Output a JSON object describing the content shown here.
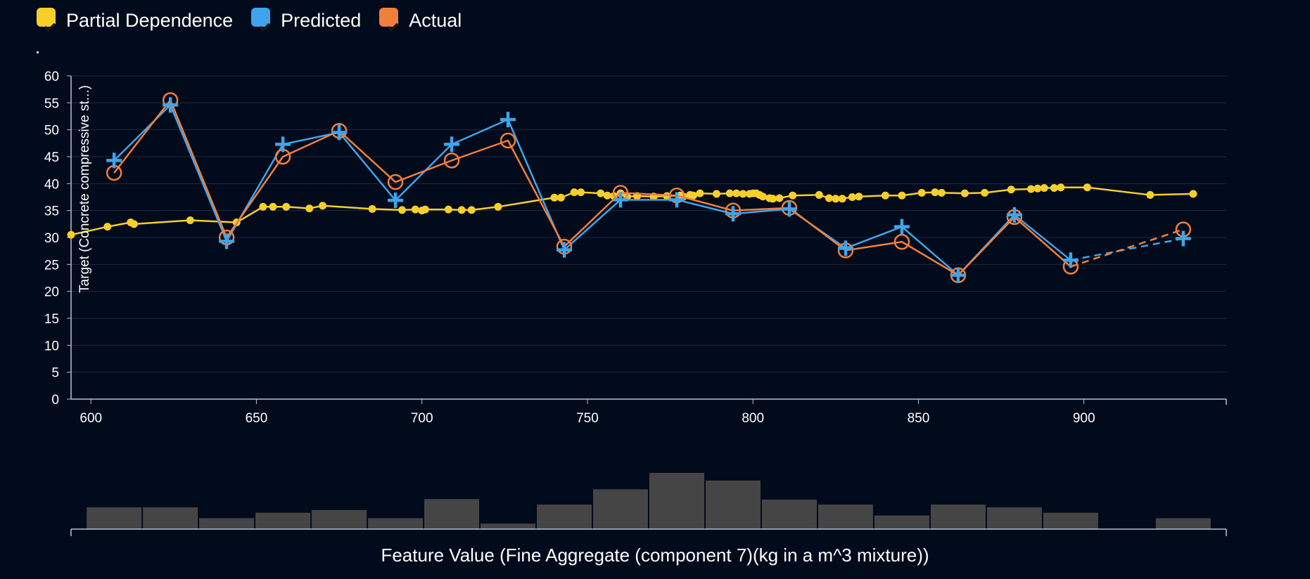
{
  "legend": {
    "items": [
      {
        "label": "Partial Dependence",
        "color": "#f7cf2b"
      },
      {
        "label": "Predicted",
        "color": "#3fa4ea"
      },
      {
        "label": "Actual",
        "color": "#f07f3c"
      }
    ]
  },
  "chart_data": {
    "type": "line",
    "ylabel": "Target (Concrete compressive st...)",
    "xlabel": "Feature Value (Fine Aggregate (component 7)(kg in a m^3 mixture))",
    "xlim": [
      594,
      943
    ],
    "ylim": [
      0,
      60
    ],
    "x_ticks": [
      600,
      650,
      700,
      750,
      800,
      850,
      900
    ],
    "y_ticks": [
      0,
      5,
      10,
      15,
      20,
      25,
      30,
      35,
      40,
      45,
      50,
      55,
      60
    ],
    "grid": true,
    "legend_position": "top-left",
    "series": [
      {
        "name": "Partial Dependence",
        "color": "#f7cf2b",
        "marker": "dot",
        "points": [
          [
            594,
            30.5
          ],
          [
            605,
            32.0
          ],
          [
            612,
            32.8
          ],
          [
            613,
            32.5
          ],
          [
            630,
            33.2
          ],
          [
            644,
            32.8
          ],
          [
            652,
            35.7
          ],
          [
            655,
            35.7
          ],
          [
            659,
            35.7
          ],
          [
            666,
            35.4
          ],
          [
            670,
            35.9
          ],
          [
            685,
            35.3
          ],
          [
            694,
            35.1
          ],
          [
            698,
            35.2
          ],
          [
            700,
            35.0
          ],
          [
            701,
            35.2
          ],
          [
            708,
            35.2
          ],
          [
            712,
            35.1
          ],
          [
            715,
            35.1
          ],
          [
            723,
            35.7
          ],
          [
            740,
            37.4
          ],
          [
            742,
            37.4
          ],
          [
            746,
            38.4
          ],
          [
            748,
            38.4
          ],
          [
            754,
            38.2
          ],
          [
            756,
            37.8
          ],
          [
            758,
            37.7
          ],
          [
            760,
            38.2
          ],
          [
            762,
            37.6
          ],
          [
            765,
            37.7
          ],
          [
            770,
            37.6
          ],
          [
            774,
            37.7
          ],
          [
            778,
            37.8
          ],
          [
            779,
            37.6
          ],
          [
            781,
            37.9
          ],
          [
            782,
            37.8
          ],
          [
            784,
            38.2
          ],
          [
            789,
            38.1
          ],
          [
            793,
            38.2
          ],
          [
            795,
            38.2
          ],
          [
            797,
            38.1
          ],
          [
            799,
            38.1
          ],
          [
            800,
            38.2
          ],
          [
            801,
            38.2
          ],
          [
            802,
            37.9
          ],
          [
            803,
            37.6
          ],
          [
            805,
            37.3
          ],
          [
            806,
            37.2
          ],
          [
            808,
            37.3
          ],
          [
            812,
            37.8
          ],
          [
            820,
            37.9
          ],
          [
            823,
            37.3
          ],
          [
            825,
            37.2
          ],
          [
            827,
            37.2
          ],
          [
            830,
            37.5
          ],
          [
            832,
            37.6
          ],
          [
            840,
            37.8
          ],
          [
            845,
            37.8
          ],
          [
            851,
            38.3
          ],
          [
            855,
            38.4
          ],
          [
            857,
            38.3
          ],
          [
            864,
            38.2
          ],
          [
            870,
            38.3
          ],
          [
            878,
            38.9
          ],
          [
            884,
            39.0
          ],
          [
            886,
            39.1
          ],
          [
            888,
            39.2
          ],
          [
            891,
            39.2
          ],
          [
            893,
            39.3
          ],
          [
            901,
            39.3
          ],
          [
            920,
            37.9
          ],
          [
            933,
            38.1
          ]
        ]
      },
      {
        "name": "Predicted",
        "color": "#3fa4ea",
        "marker": "plus",
        "points": [
          [
            607,
            44.3
          ],
          [
            624,
            54.6
          ],
          [
            641,
            29.3
          ],
          [
            658,
            47.3
          ],
          [
            675,
            49.5
          ],
          [
            692,
            36.9
          ],
          [
            709,
            47.3
          ],
          [
            726,
            51.9
          ],
          [
            743,
            27.7
          ],
          [
            760,
            37.0
          ],
          [
            777,
            37.0
          ],
          [
            794,
            34.4
          ],
          [
            811,
            35.3
          ],
          [
            828,
            28.0
          ],
          [
            845,
            32.0
          ],
          [
            862,
            23.0
          ],
          [
            879,
            34.2
          ],
          [
            896,
            25.8
          ],
          [
            930,
            29.8
          ]
        ],
        "dashed_last_segment": true
      },
      {
        "name": "Actual",
        "color": "#f07f3c",
        "marker": "circle",
        "points": [
          [
            607,
            42.0
          ],
          [
            624,
            55.5
          ],
          [
            641,
            30.0
          ],
          [
            658,
            45.0
          ],
          [
            675,
            49.8
          ],
          [
            692,
            40.3
          ],
          [
            709,
            44.3
          ],
          [
            726,
            48.0
          ],
          [
            743,
            28.3
          ],
          [
            760,
            38.3
          ],
          [
            777,
            37.8
          ],
          [
            794,
            35.0
          ],
          [
            811,
            35.5
          ],
          [
            828,
            27.6
          ],
          [
            845,
            29.2
          ],
          [
            862,
            23.0
          ],
          [
            879,
            33.8
          ],
          [
            896,
            24.6
          ],
          [
            930,
            31.5
          ]
        ],
        "dashed_last_segment": true
      }
    ],
    "histogram": {
      "bin_centers": [
        607,
        624,
        641,
        658,
        675,
        692,
        709,
        726,
        743,
        760,
        777,
        794,
        811,
        828,
        845,
        862,
        879,
        896,
        913,
        930
      ],
      "counts": [
        4,
        4,
        2,
        3,
        3.5,
        2,
        5.5,
        1,
        4.5,
        7.3,
        10.3,
        8.9,
        5.4,
        4.5,
        2.5,
        4.5,
        4,
        3,
        0,
        2
      ],
      "color": "#454545"
    }
  }
}
